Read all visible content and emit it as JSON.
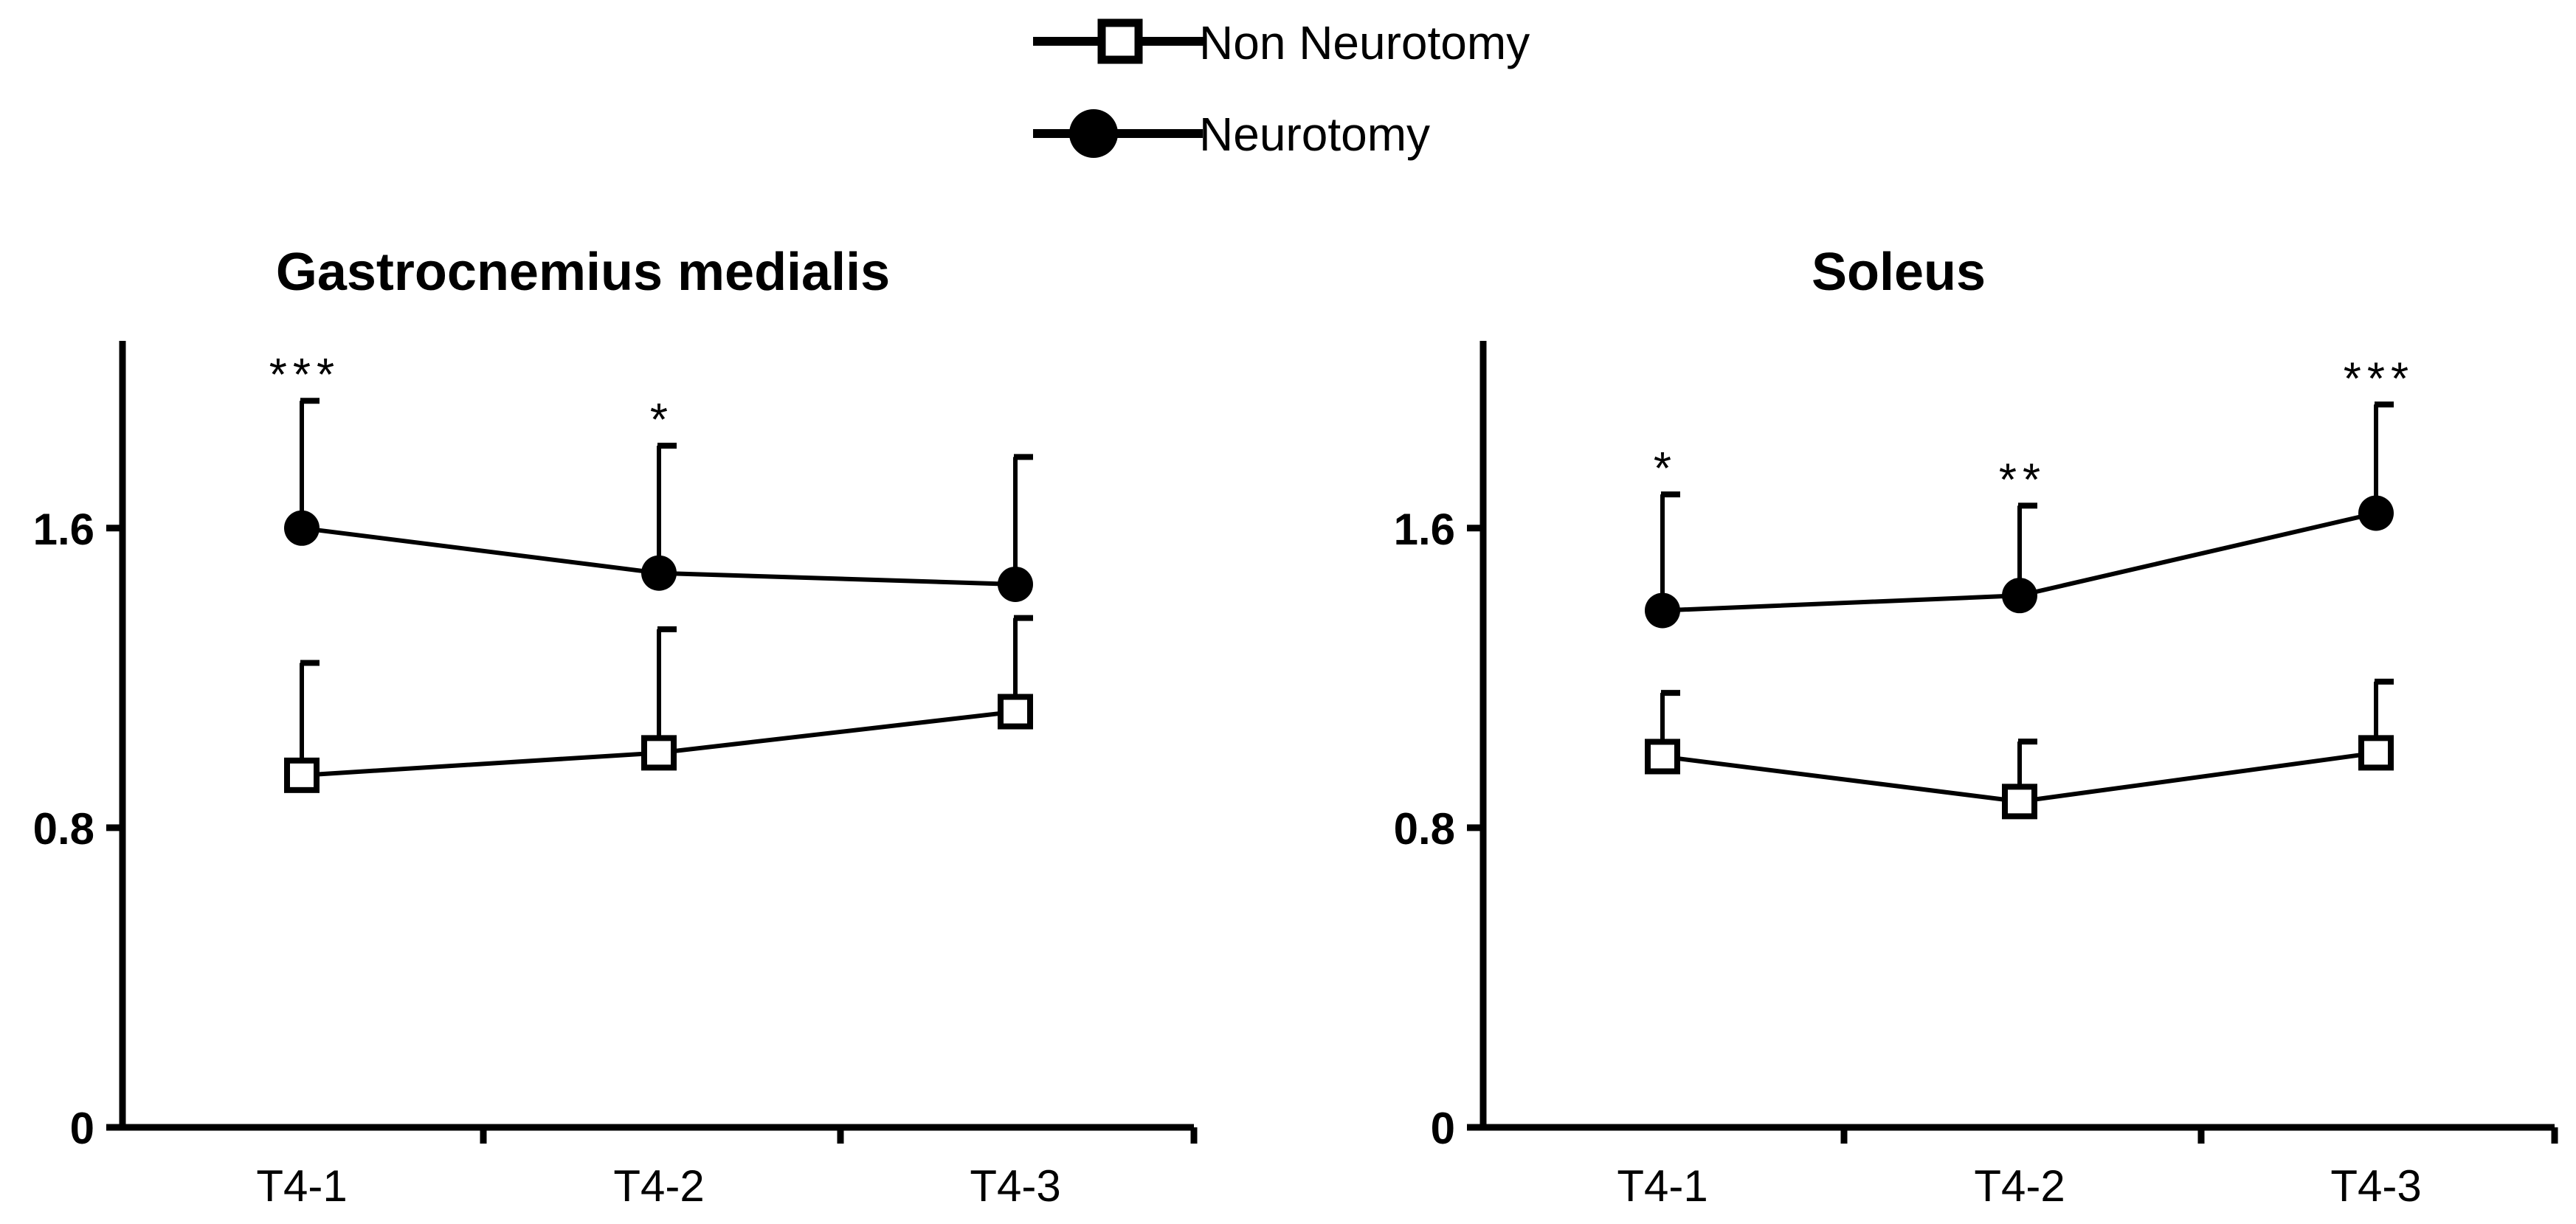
{
  "legend": {
    "items": [
      {
        "label": "Non Neurotomy",
        "marker": "open-square"
      },
      {
        "label": "Neurotomy",
        "marker": "filled-circle"
      }
    ]
  },
  "chart_data": [
    {
      "type": "line",
      "title": "Gastrocnemius medialis",
      "xlabel": "",
      "ylabel": "",
      "categories": [
        "T4-1",
        "T4-2",
        "T4-3"
      ],
      "ylim": [
        0,
        2.1
      ],
      "yticks": [
        0,
        0.8,
        1.6
      ],
      "ytick_labels": [
        "0",
        "0.8",
        "1.6"
      ],
      "series": [
        {
          "name": "Neurotomy",
          "marker": "filled-circle",
          "values": [
            1.6,
            1.48,
            1.45
          ],
          "error": [
            0.34,
            0.34,
            0.34
          ]
        },
        {
          "name": "Non Neurotomy",
          "marker": "open-square",
          "values": [
            0.94,
            1.0,
            1.11
          ],
          "error": [
            0.3,
            0.33,
            0.25
          ]
        }
      ],
      "annotations": [
        {
          "category": "T4-1",
          "text": "***"
        },
        {
          "category": "T4-2",
          "text": "*"
        }
      ]
    },
    {
      "type": "line",
      "title": "Soleus",
      "xlabel": "",
      "ylabel": "",
      "categories": [
        "T4-1",
        "T4-2",
        "T4-3"
      ],
      "ylim": [
        0,
        2.1
      ],
      "yticks": [
        0,
        0.8,
        1.6
      ],
      "ytick_labels": [
        "0",
        "0.8",
        "1.6"
      ],
      "series": [
        {
          "name": "Neurotomy",
          "marker": "filled-circle",
          "values": [
            1.38,
            1.42,
            1.64
          ],
          "error": [
            0.31,
            0.24,
            0.29
          ]
        },
        {
          "name": "Non Neurotomy",
          "marker": "open-square",
          "values": [
            0.99,
            0.87,
            1.0
          ],
          "error": [
            0.17,
            0.16,
            0.19
          ]
        }
      ],
      "annotations": [
        {
          "category": "T4-1",
          "text": "*"
        },
        {
          "category": "T4-2",
          "text": "**"
        },
        {
          "category": "T4-3",
          "text": "***"
        }
      ]
    }
  ]
}
